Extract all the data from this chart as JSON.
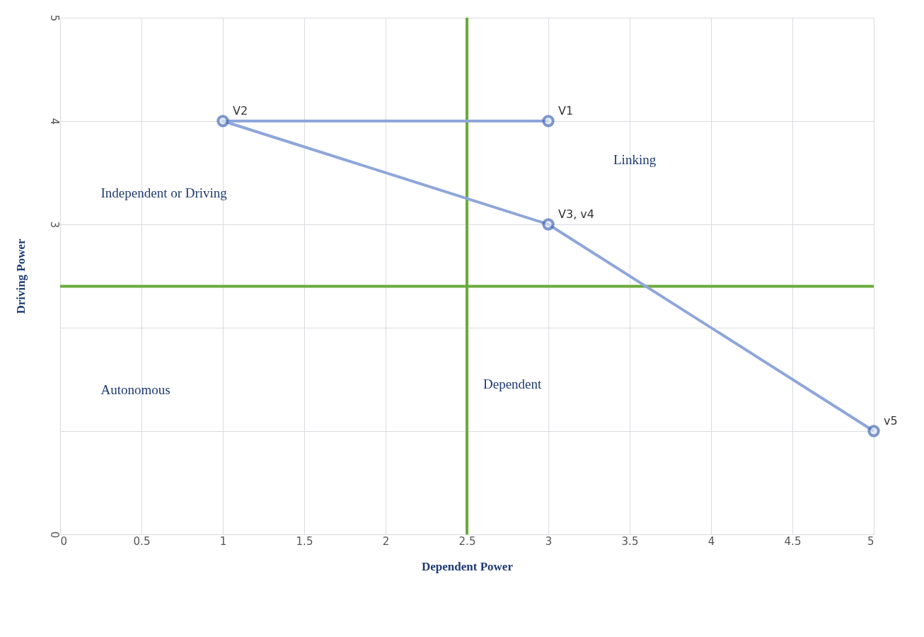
{
  "chart_data": {
    "type": "line",
    "xlabel": "Dependent Power",
    "ylabel": "Driving Power",
    "x": [
      3,
      1,
      3,
      5
    ],
    "series": [
      {
        "color": "#8ea6da",
        "values": [
          4,
          4,
          3,
          1
        ]
      }
    ],
    "marker": "circle",
    "line_style": "solid",
    "grid": true,
    "xlim": [
      0,
      5
    ],
    "xticks": [
      0,
      0.5,
      1,
      1.5,
      2,
      2.5,
      3,
      3.5,
      4,
      4.5,
      5
    ],
    "ylim": [
      0,
      5
    ],
    "yticks": [
      0,
      {
        "value": 1,
        "label": null
      },
      {
        "value": 2,
        "label": null
      },
      3,
      4,
      5
    ],
    "ref_lines": [
      {
        "axis": "x",
        "value": 2.5,
        "color": "#6aaa3a"
      },
      {
        "axis": "y",
        "value": 2.4,
        "color": "#6aaa3a"
      }
    ],
    "annotations": [
      {
        "text": "V1",
        "x": 3,
        "y": 4
      },
      {
        "text": "V2",
        "x": 1,
        "y": 4
      },
      {
        "text": "V3, v4",
        "x": 3,
        "y": 3
      },
      {
        "text": "v5",
        "x": 5,
        "y": 1
      },
      "Linking",
      "Independent or Driving",
      "Autonomous",
      "Dependent"
    ]
  }
}
